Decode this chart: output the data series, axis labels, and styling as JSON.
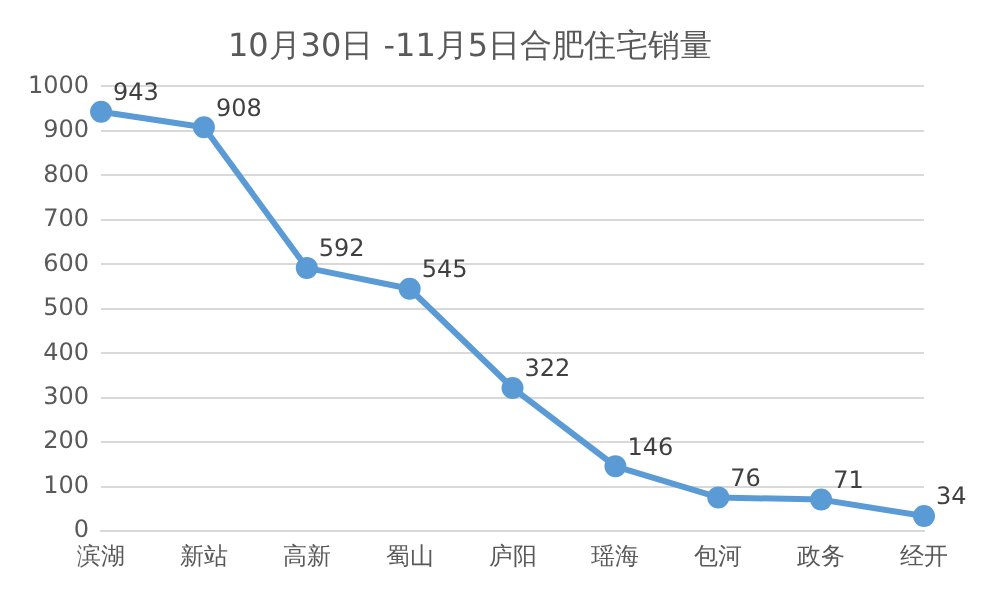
{
  "chart_data": {
    "type": "line",
    "title": "10月30日 -11月5日合肥住宅销量",
    "categories": [
      "滨湖",
      "新站",
      "高新",
      "蜀山",
      "庐阳",
      "瑶海",
      "包河",
      "政务",
      "经开"
    ],
    "series": [
      {
        "color": "#5b9bd5",
        "values": [
          943,
          908,
          592,
          545,
          322,
          146,
          76,
          71,
          34
        ]
      }
    ],
    "ylim": [
      0,
      1000
    ],
    "yticks": [
      0,
      100,
      200,
      300,
      400,
      500,
      600,
      700,
      800,
      900,
      1000
    ],
    "grid": "y",
    "legend": false,
    "marker": "circle",
    "line_style": "solid",
    "data_labels": true
  }
}
